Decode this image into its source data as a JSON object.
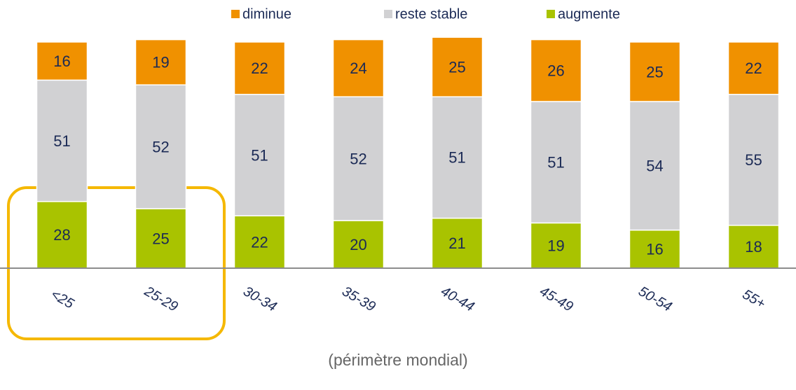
{
  "chart_data": {
    "type": "stacked_bar",
    "categories": [
      "<25",
      "25-29",
      "30-34",
      "35-39",
      "40-44",
      "45-49",
      "50-54",
      "55+"
    ],
    "series": [
      {
        "name": "augmente",
        "color": "#a9c300",
        "values": [
          28,
          25,
          22,
          20,
          21,
          19,
          16,
          18
        ]
      },
      {
        "name": "reste stable",
        "color": "#d1d1d3",
        "values": [
          51,
          52,
          51,
          52,
          51,
          51,
          54,
          55
        ]
      },
      {
        "name": "diminue",
        "color": "#f09100",
        "values": [
          16,
          19,
          22,
          24,
          25,
          26,
          25,
          22
        ]
      }
    ],
    "ylim": [
      0,
      100
    ],
    "footnote": "(périmètre mondial)"
  }
}
